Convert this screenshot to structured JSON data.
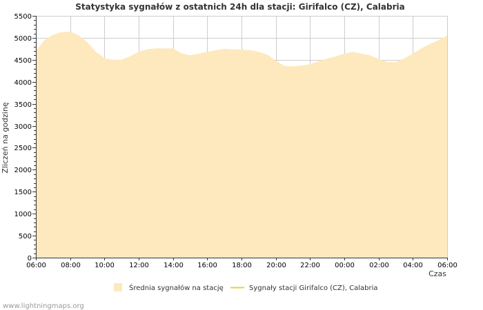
{
  "chart_data": {
    "type": "area",
    "title": "Statystyka sygnałów z ostatnich 24h dla stacji: Girifalco (CZ), Calabria",
    "xlabel": "Czas",
    "ylabel": "Zliczeń na godzinę",
    "ylim": [
      0,
      5500
    ],
    "yticks": [
      0,
      500,
      1000,
      1500,
      2000,
      2500,
      3000,
      3500,
      4000,
      4500,
      5000,
      5500
    ],
    "xlim": [
      0,
      24
    ],
    "xticks": [
      {
        "pos": 0,
        "label": "06:00"
      },
      {
        "pos": 2,
        "label": "08:00"
      },
      {
        "pos": 4,
        "label": "10:00"
      },
      {
        "pos": 6,
        "label": "12:00"
      },
      {
        "pos": 8,
        "label": "14:00"
      },
      {
        "pos": 10,
        "label": "16:00"
      },
      {
        "pos": 12,
        "label": "18:00"
      },
      {
        "pos": 14,
        "label": "20:00"
      },
      {
        "pos": 16,
        "label": "22:00"
      },
      {
        "pos": 18,
        "label": "00:00"
      },
      {
        "pos": 20,
        "label": "02:00"
      },
      {
        "pos": 22,
        "label": "04:00"
      },
      {
        "pos": 24,
        "label": "06:00"
      }
    ],
    "grid": true,
    "series": [
      {
        "name": "Średnia sygnałów na stację",
        "kind": "area",
        "color": "#fde9bd",
        "x": [
          0,
          0.5,
          1,
          1.5,
          2,
          2.5,
          3,
          3.5,
          4,
          4.5,
          5,
          5.5,
          6,
          6.5,
          7,
          7.5,
          8,
          8.5,
          9,
          9.5,
          10,
          10.5,
          11,
          11.5,
          12,
          12.5,
          13,
          13.5,
          14,
          14.5,
          15,
          15.5,
          16,
          16.5,
          17,
          17.5,
          18,
          18.5,
          19,
          19.5,
          20,
          20.5,
          21,
          21.5,
          22,
          22.5,
          23,
          23.5,
          24
        ],
        "values": [
          4700,
          4950,
          5070,
          5130,
          5140,
          5060,
          4900,
          4680,
          4540,
          4500,
          4500,
          4580,
          4680,
          4740,
          4760,
          4760,
          4760,
          4650,
          4600,
          4640,
          4680,
          4720,
          4750,
          4740,
          4730,
          4720,
          4680,
          4620,
          4480,
          4360,
          4350,
          4370,
          4400,
          4470,
          4530,
          4580,
          4640,
          4680,
          4640,
          4600,
          4520,
          4450,
          4450,
          4530,
          4640,
          4760,
          4860,
          4950,
          5050
        ]
      },
      {
        "name": "Sygnały stacji Girifalco (CZ), Calabria",
        "kind": "line",
        "color": "#e8cf3a",
        "x": [],
        "values": []
      }
    ],
    "legend": "bottom-center"
  },
  "credit": "www.lightningmaps.org"
}
